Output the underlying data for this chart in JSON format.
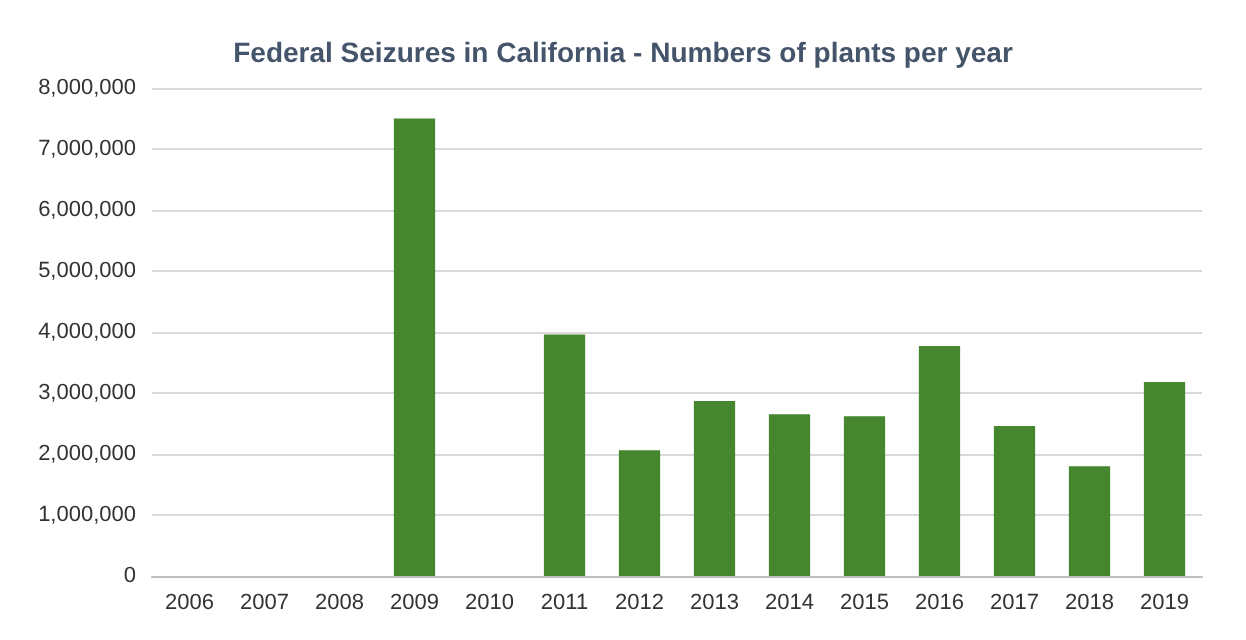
{
  "chart_data": {
    "type": "bar",
    "title": "Federal Seizures in California - Numbers of plants per year",
    "categories": [
      "2006",
      "2007",
      "2008",
      "2009",
      "2010",
      "2011",
      "2012",
      "2013",
      "2014",
      "2015",
      "2016",
      "2017",
      "2018",
      "2019"
    ],
    "values": [
      0,
      0,
      0,
      7500000,
      0,
      3960000,
      2060000,
      2870000,
      2650000,
      2620000,
      3770000,
      2460000,
      1800000,
      3180000
    ],
    "color": "#45862e",
    "ylim": [
      0,
      8000000
    ],
    "yticks": [
      0,
      {
        "value": 1000000,
        "label": "1,000,000"
      },
      {
        "value": 2000000,
        "label": "2,000,000"
      },
      {
        "value": 3000000,
        "label": "3,000,000"
      },
      {
        "value": 4000000,
        "label": "4,000,000"
      },
      {
        "value": 5000000,
        "label": "5,000,000"
      },
      {
        "value": 6000000,
        "label": "6,000,000"
      },
      {
        "value": 7000000,
        "label": "7,000,000"
      },
      {
        "value": 8000000,
        "label": "8,000,000"
      }
    ],
    "grid": "y"
  }
}
